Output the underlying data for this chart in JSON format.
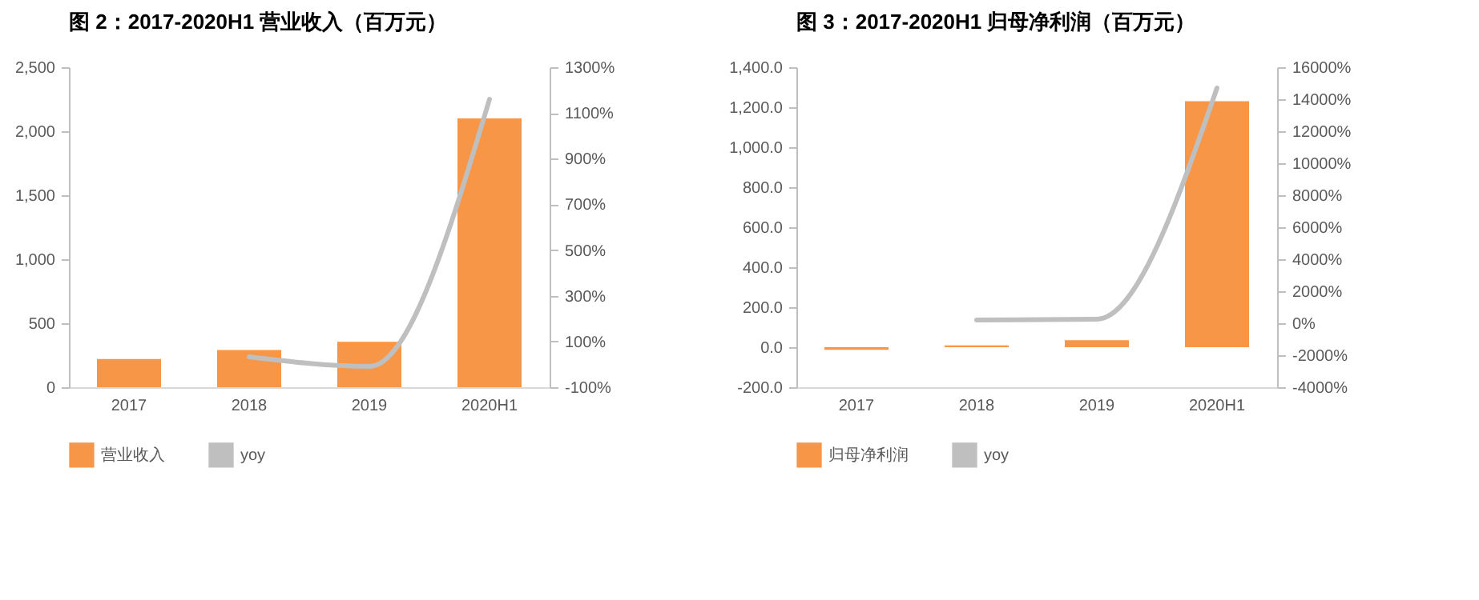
{
  "chart_data": [
    {
      "type": "bar",
      "title": "图 2：2017-2020H1 营业收入（百万元）",
      "categories": [
        "2017",
        "2018",
        "2019",
        "2020H1"
      ],
      "series": [
        {
          "name": "营业收入",
          "color": "#f79646",
          "values": [
            220,
            290,
            355,
            2100
          ]
        },
        {
          "name": "yoy",
          "type": "line",
          "axis": "y2",
          "color": "#bfbfbf",
          "values": [
            null,
            33,
            -9,
            1160
          ]
        }
      ],
      "ylim": [
        0,
        2500
      ],
      "yticks": [
        0,
        500,
        {
          "value": 1000,
          "label": "1,000"
        },
        {
          "value": 1500,
          "label": "1,500"
        },
        {
          "value": 2000,
          "label": "2,000"
        },
        {
          "value": 2500,
          "label": "2,500"
        }
      ],
      "y2lim": [
        -100,
        1300
      ],
      "y2ticks": [
        {
          "value": -100,
          "label": "-100%"
        },
        {
          "value": 100,
          "label": "100%"
        },
        {
          "value": 300,
          "label": "300%"
        },
        {
          "value": 500,
          "label": "500%"
        },
        {
          "value": 700,
          "label": "700%"
        },
        {
          "value": 900,
          "label": "900%"
        },
        {
          "value": 1100,
          "label": "1100%"
        },
        {
          "value": 1300,
          "label": "1300%"
        }
      ],
      "legend": "bottom"
    },
    {
      "type": "bar",
      "title": "图 3：2017-2020H1 归母净利润（百万元）",
      "categories": [
        "2017",
        "2018",
        "2019",
        "2020H1"
      ],
      "series": [
        {
          "name": "归母净利润",
          "color": "#f79646",
          "values": [
            -13,
            9,
            35,
            1230
          ]
        },
        {
          "name": "yoy",
          "type": "line",
          "axis": "y2",
          "color": "#bfbfbf",
          "values": [
            null,
            200,
            250,
            14700
          ]
        }
      ],
      "ylim": [
        -200,
        1400
      ],
      "yticks": [
        {
          "value": -200,
          "label": "-200.0"
        },
        {
          "value": 0,
          "label": "0.0"
        },
        {
          "value": 200,
          "label": "200.0"
        },
        {
          "value": 400,
          "label": "400.0"
        },
        {
          "value": 600,
          "label": "600.0"
        },
        {
          "value": 800,
          "label": "800.0"
        },
        {
          "value": 1000,
          "label": "1,000.0"
        },
        {
          "value": 1200,
          "label": "1,200.0"
        },
        {
          "value": 1400,
          "label": "1,400.0"
        }
      ],
      "y2lim": [
        -4000,
        16000
      ],
      "y2ticks": [
        {
          "value": -4000,
          "label": "-4000%"
        },
        {
          "value": -2000,
          "label": "-2000%"
        },
        {
          "value": 0,
          "label": "0%"
        },
        {
          "value": 2000,
          "label": "2000%"
        },
        {
          "value": 4000,
          "label": "4000%"
        },
        {
          "value": 6000,
          "label": "6000%"
        },
        {
          "value": 8000,
          "label": "8000%"
        },
        {
          "value": 10000,
          "label": "10000%"
        },
        {
          "value": 12000,
          "label": "12000%"
        },
        {
          "value": 14000,
          "label": "14000%"
        },
        {
          "value": 16000,
          "label": "16000%"
        }
      ],
      "legend": "bottom"
    }
  ]
}
